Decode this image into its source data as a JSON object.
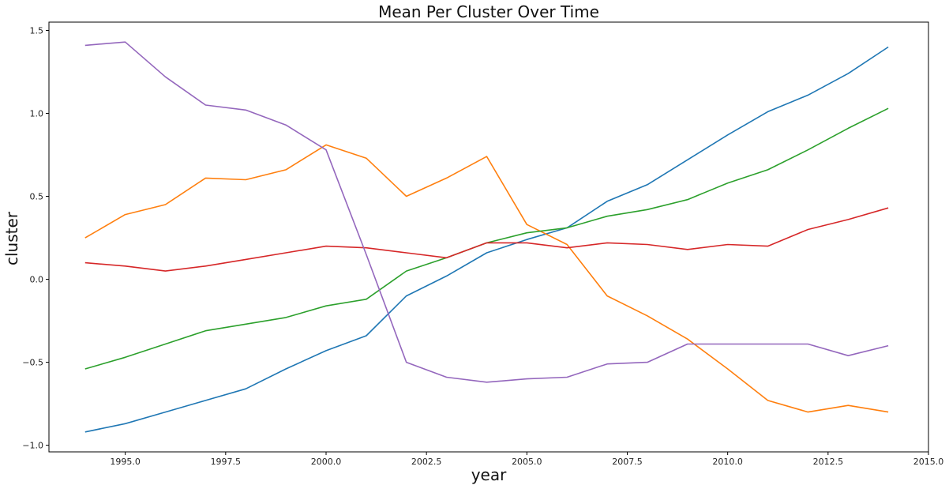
{
  "chart_data": {
    "type": "line",
    "title": "Mean Per Cluster Over Time",
    "xlabel": "year",
    "ylabel": "cluster",
    "xlim": [
      1993.1,
      2015.0
    ],
    "ylim": [
      -1.04,
      1.55
    ],
    "x_ticks": [
      1995.0,
      1997.5,
      2000.0,
      2002.5,
      2005.0,
      2007.5,
      2010.0,
      2012.5,
      2015.0
    ],
    "x_tick_labels": [
      "1995.0",
      "1997.5",
      "2000.0",
      "2002.5",
      "2005.0",
      "2007.5",
      "2010.0",
      "2012.5",
      "2015.0"
    ],
    "y_ticks": [
      -1.0,
      -0.5,
      0.0,
      0.5,
      1.0,
      1.5
    ],
    "y_tick_labels": [
      "−1.0",
      "−0.5",
      "0.0",
      "0.5",
      "1.0",
      "1.5"
    ],
    "grid": false,
    "legend": "none",
    "x": [
      1994,
      1995,
      1996,
      1997,
      1998,
      1999,
      2000,
      2001,
      2002,
      2003,
      2004,
      2005,
      2006,
      2007,
      2008,
      2009,
      2010,
      2011,
      2012,
      2013,
      2014
    ],
    "series": [
      {
        "color": "#1f77b4",
        "values": [
          -0.92,
          -0.87,
          -0.8,
          -0.73,
          -0.66,
          -0.54,
          -0.43,
          -0.34,
          -0.1,
          0.02,
          0.16,
          0.24,
          0.31,
          0.47,
          0.57,
          0.72,
          0.87,
          1.01,
          1.11,
          1.24,
          1.4
        ]
      },
      {
        "color": "#ff7f0e",
        "values": [
          0.25,
          0.39,
          0.45,
          0.61,
          0.6,
          0.66,
          0.81,
          0.73,
          0.5,
          0.61,
          0.74,
          0.33,
          0.21,
          -0.1,
          -0.22,
          -0.36,
          -0.54,
          -0.73,
          -0.8,
          -0.76,
          -0.8
        ]
      },
      {
        "color": "#2ca02c",
        "values": [
          -0.54,
          -0.47,
          -0.39,
          -0.31,
          -0.27,
          -0.23,
          -0.16,
          -0.12,
          0.05,
          0.13,
          0.22,
          0.28,
          0.31,
          0.38,
          0.42,
          0.48,
          0.58,
          0.66,
          0.78,
          0.91,
          1.03
        ]
      },
      {
        "color": "#d62728",
        "values": [
          0.1,
          0.08,
          0.05,
          0.08,
          0.12,
          0.16,
          0.2,
          0.19,
          0.16,
          0.13,
          0.22,
          0.22,
          0.19,
          0.22,
          0.21,
          0.18,
          0.21,
          0.2,
          0.3,
          0.36,
          0.43
        ]
      },
      {
        "color": "#9467bd",
        "values": [
          1.41,
          1.43,
          1.22,
          1.05,
          1.02,
          0.93,
          0.78,
          0.15,
          -0.5,
          -0.59,
          -0.62,
          -0.6,
          -0.59,
          -0.51,
          -0.5,
          -0.39,
          -0.39,
          -0.39,
          -0.39,
          -0.46,
          -0.4
        ]
      }
    ]
  }
}
